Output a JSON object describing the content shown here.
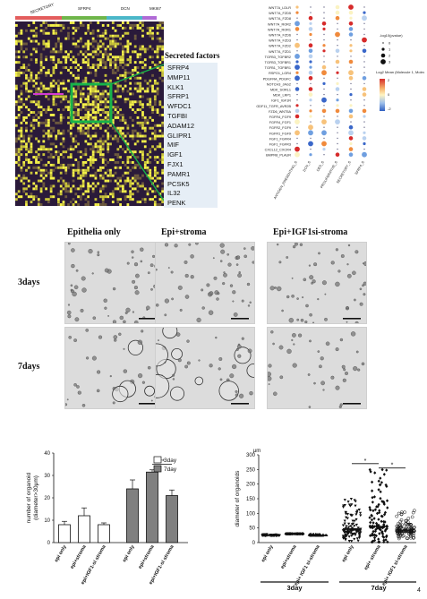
{
  "panelA": {
    "heatmap": {
      "groups": [
        {
          "label": "SECRETORY",
          "color": "#e35d5d"
        },
        {
          "label": "SFRP4",
          "color": "#6fb64a"
        },
        {
          "label": "DCN",
          "color": "#4bb7c9"
        },
        {
          "label": "MKI67",
          "color": "#b06ad6"
        }
      ]
    },
    "secreted_title": "Secreted factors",
    "secreted_factors": [
      "SFRP4",
      "MMP11",
      "KLK1",
      "SFRP1",
      "WFDC1",
      "TGFBI",
      "ADAM12",
      "GLIPR1",
      "MIF",
      "IGF1",
      "FJX1",
      "PAMR1",
      "PCSK5",
      "IL32",
      "PENK"
    ]
  },
  "panelB": {
    "legend": {
      "size_title": "-log10(pvalue)",
      "size_values": [
        "0",
        "1",
        "2",
        "3"
      ],
      "color_title": "Log2 Mean (Molecule 1, Molecule 2)",
      "color_ticks": [
        "2",
        "0",
        "-2"
      ]
    },
    "rows": [
      "WNT7A_LDLR",
      "WNT7A_FZD5",
      "WNT7A_FZD8",
      "WNT7A_ROR2",
      "WNT7A_ROR1",
      "WNT7A_FZD6",
      "WNT7A_FZD3",
      "WNT7A_FZD2",
      "WNT7A_FZD1",
      "TGFB3_TGFBR2",
      "TGFB3_TGFBR1",
      "TGFB1_TGFBR1",
      "RSPO1_LGR4",
      "PDGFRA_PDGFC",
      "NOTCH3_JAG2",
      "MDK_SORL1",
      "MDK_LRP1",
      "IGF1_IGF1R",
      "GDF11_TGFR_AVR2B",
      "FZD6_WNT5A",
      "FGFR4_FGF9",
      "FGFR4_FGF1",
      "FGFR2_FGF9",
      "FGFR1_FGF9",
      "FGF1_FGFR4",
      "FGF1_FGFR3",
      "CXCL12_CXCR4",
      "BMPR8_PLAUR"
    ],
    "cols": [
      "ANTIGEN_PRESENTING_S",
      "DCN_S",
      "DES_S",
      "PROLIFERATIVE_S",
      "SECRETORY_S",
      "SFRP4_S"
    ]
  },
  "panelC": {
    "column_titles": [
      "Epithelia only",
      "Epi+stroma",
      "Epi+IGF1si-stroma"
    ],
    "row_titles": [
      "3days",
      "7days"
    ]
  },
  "chart_data": [
    {
      "type": "bar",
      "ylabel": "number of organoid\n(diameter>30μm)",
      "ylim": [
        0,
        40
      ],
      "yticks": [
        0,
        10,
        20,
        30,
        40
      ],
      "categories": [
        "epi only",
        "epi+stroma",
        "epi+IGF1-si stroma",
        "epi only",
        "epi+stroma",
        "epi+IGF1-si stroma"
      ],
      "series": [
        {
          "name": "3day",
          "values": [
            8,
            12,
            8,
            null,
            null,
            null
          ],
          "errors": [
            1.5,
            3.5,
            0.8,
            null,
            null,
            null
          ],
          "color": "#ffffff"
        },
        {
          "name": "7day",
          "values": [
            null,
            null,
            null,
            24,
            31.5,
            21
          ],
          "errors": [
            null,
            null,
            null,
            4,
            1,
            2.5
          ],
          "color": "#808080"
        }
      ],
      "annotations": [
        {
          "text": "**",
          "between": [
            "epi+stroma",
            "epi+IGF1-si stroma"
          ],
          "group": "7day"
        }
      ],
      "legend_placement": "top-right"
    },
    {
      "type": "scatter",
      "ylabel": "diameter of organoids",
      "ylim": [
        0,
        300
      ],
      "yticks": [
        0,
        50,
        100,
        150,
        200,
        250,
        300
      ],
      "y_unit_label": "μm",
      "categories": [
        "epi only",
        "epi+stroma",
        "epi+ IGF1 si-stroma",
        "epi only",
        "epi+ stroma",
        "epi+ IGF1 si-stroma"
      ],
      "group_labels": [
        "3day",
        "7day"
      ],
      "medians": [
        25,
        30,
        25,
        45,
        55,
        40
      ],
      "markers": [
        "triangle-down",
        "diamond",
        "triangle-up",
        "triangle-down",
        "diamond",
        "circle"
      ],
      "annotations": [
        {
          "text": "*",
          "between": [
            "epi only",
            "epi+ stroma"
          ],
          "group": "7day"
        },
        {
          "text": "*",
          "between": [
            "epi+ stroma",
            "epi+ IGF1 si-stroma"
          ],
          "group": "7day"
        }
      ]
    }
  ],
  "page_number": "4"
}
